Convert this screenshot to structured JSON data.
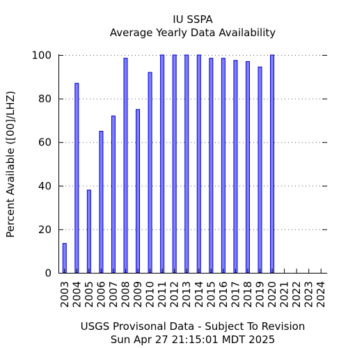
{
  "chart_data": {
    "type": "bar",
    "title": "IU SSPA",
    "subtitle": "Average Yearly Data Availability",
    "ylabel": "Percent Available ([00]/LHZ)",
    "xlabel": "",
    "categories": [
      "2003",
      "2004",
      "2005",
      "2006",
      "2007",
      "2008",
      "2009",
      "2010",
      "2011",
      "2012",
      "2013",
      "2014",
      "2015",
      "2016",
      "2017",
      "2018",
      "2019",
      "2020",
      "2021",
      "2022",
      "2023",
      "2024"
    ],
    "values": [
      13.5,
      87,
      38,
      65,
      72,
      98.5,
      75,
      92,
      100,
      100,
      100,
      100,
      98.5,
      98.5,
      97.5,
      97,
      94.5,
      100,
      0,
      0,
      0,
      0
    ],
    "ylim": [
      0,
      100
    ],
    "yticks": [
      0,
      20,
      40,
      60,
      80,
      100
    ],
    "grid": true,
    "bar_fill": "#7f7fff",
    "bar_stroke": "#0000cc"
  },
  "footer": {
    "line1": "USGS Provisonal Data - Subject To Revision",
    "line2": "Sun Apr 27 21:15:01 MDT 2025"
  }
}
